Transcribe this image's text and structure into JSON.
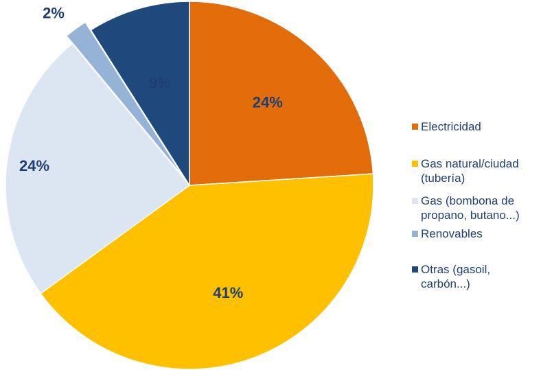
{
  "chart_data": {
    "type": "pie",
    "categories": [
      "Electricidad",
      "Gas natural/ciudad (tubería)",
      "Gas (bombona de propano, butano...)",
      "Renovables",
      "Otras (gasoil, carbón...)"
    ],
    "values": [
      24,
      41,
      24,
      2,
      9
    ],
    "value_labels": [
      "24%",
      "41%",
      "24%",
      "2%",
      "9%"
    ],
    "colors": [
      "#e36c0a",
      "#ffc000",
      "#dce6f2",
      "#95b3d7",
      "#1f497d"
    ],
    "exploded": [
      false,
      false,
      false,
      true,
      false
    ],
    "legend_position": "right",
    "title": ""
  },
  "legend": [
    {
      "lines": [
        "Electricidad"
      ],
      "color": "#e36c0a"
    },
    {
      "lines": [
        "Gas natural/ciudad",
        "(tubería)"
      ],
      "color": "#ffc000"
    },
    {
      "lines": [
        "Gas (bombona de",
        "propano, butano...)"
      ],
      "color": "#dce6f2"
    },
    {
      "lines": [
        "Renovables"
      ],
      "color": "#95b3d7"
    },
    {
      "lines": [
        "Otras (gasoil,",
        "carbón...)"
      ],
      "color": "#1f497d"
    }
  ]
}
